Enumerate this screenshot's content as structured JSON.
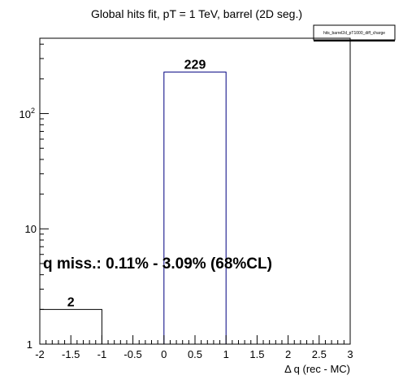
{
  "chart_data": {
    "type": "bar",
    "title": "Global hits fit, pT = 1 TeV, barrel (2D seg.)",
    "xlabel": "Δ q (rec - MC)",
    "ylabel": "",
    "xlim": [
      -2,
      3
    ],
    "ylim": [
      1,
      450
    ],
    "log_y": true,
    "grid": false,
    "bins": [
      {
        "x_low": -2,
        "x_high": -1,
        "value": 2
      },
      {
        "x_low": 0,
        "x_high": 1,
        "value": 229
      }
    ],
    "x_ticks": [
      "-2",
      "-1.5",
      "-1",
      "-0.5",
      "0",
      "0.5",
      "1",
      "1.5",
      "2",
      "2.5",
      "3"
    ],
    "legend": {
      "entry": "hits_barrel2d_pT1000_diff_charge",
      "position": "top-right"
    },
    "annotation": "q miss.: 0.11% - 3.09% (68%CL)",
    "colors": {
      "bar_line": "#000080",
      "axis": "#000000"
    }
  }
}
